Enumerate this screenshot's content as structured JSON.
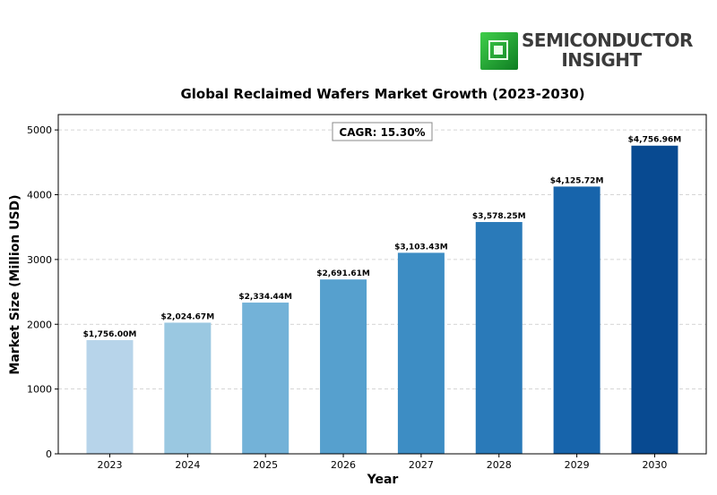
{
  "logo": {
    "line1": "SEMICONDUCTOR",
    "line2": "INSIGHT"
  },
  "chart_data": {
    "type": "bar",
    "title": "Global Reclaimed Wafers Market Growth (2023-2030)",
    "xlabel": "Year",
    "ylabel": "Market Size (Million USD)",
    "categories": [
      "2023",
      "2024",
      "2025",
      "2026",
      "2027",
      "2028",
      "2029",
      "2030"
    ],
    "values": [
      1756.0,
      2024.67,
      2334.44,
      2691.61,
      3103.43,
      3578.25,
      4125.72,
      4756.96
    ],
    "data_labels": [
      "$1,756.00M",
      "$2,024.67M",
      "$2,334.44M",
      "$2,691.61M",
      "$3,103.43M",
      "$3,578.25M",
      "$4,125.72M",
      "$4,756.96M"
    ],
    "colors": [
      "#b7d4ea",
      "#9ac8e1",
      "#73b2d8",
      "#56a0ce",
      "#3d8dc4",
      "#2a7ab9",
      "#1764ab",
      "#084a91"
    ],
    "yticks": [
      0,
      1000,
      2000,
      3000,
      4000,
      5000
    ],
    "ylim": [
      0,
      5237
    ],
    "grid": "y-dashed",
    "annotation": "CAGR: 15.30%"
  }
}
